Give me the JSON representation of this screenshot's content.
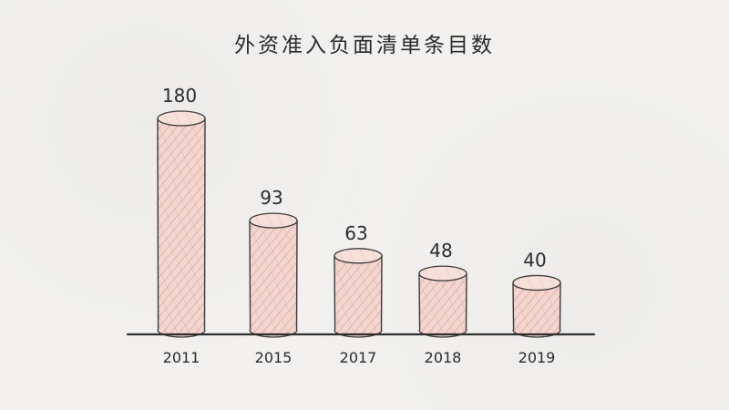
{
  "chart_data": {
    "type": "bar",
    "title": "外资准入负面清单条目数",
    "categories": [
      "2011",
      "2015",
      "2017",
      "2018",
      "2019"
    ],
    "values": [
      180,
      93,
      63,
      48,
      40
    ],
    "ylim": [
      0,
      180
    ],
    "grid": false,
    "legend": "none",
    "colors": {
      "bar_fill": "#f2d3cc",
      "bar_hatch": "#d69a90",
      "bar_stroke": "#3a3a3a",
      "text": "#2b2b2b",
      "axis": "#2e2e2e"
    }
  }
}
